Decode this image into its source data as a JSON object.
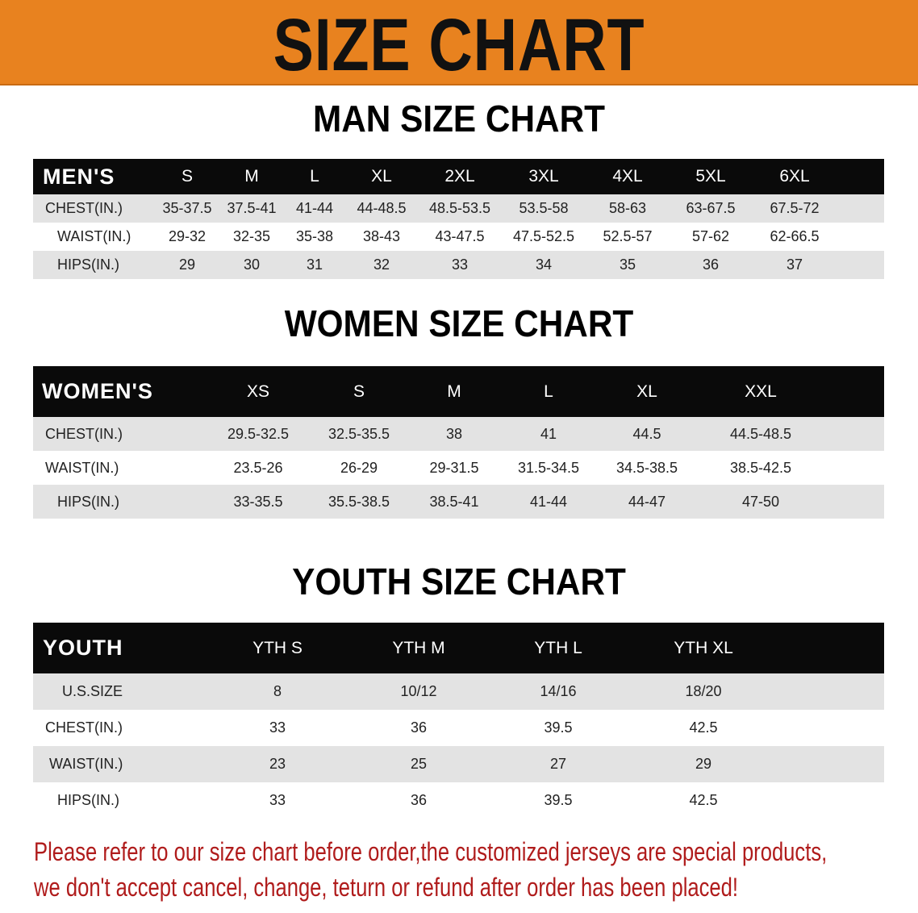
{
  "banner": {
    "title": "SIZE CHART",
    "color": "#E8821F"
  },
  "men": {
    "title": "MAN SIZE CHART",
    "header": [
      "MEN'S",
      "S",
      "M",
      "L",
      "XL",
      "2XL",
      "3XL",
      "4XL",
      "5XL",
      "6XL"
    ],
    "rows": [
      [
        "CHEST(IN.)",
        "35-37.5",
        "37.5-41",
        "41-44",
        "44-48.5",
        "48.5-53.5",
        "53.5-58",
        "58-63",
        "63-67.5",
        "67.5-72"
      ],
      [
        "WAIST(IN.)",
        "29-32",
        "32-35",
        "35-38",
        "38-43",
        "43-47.5",
        "47.5-52.5",
        "52.5-57",
        "57-62",
        "62-66.5"
      ],
      [
        "HIPS(IN.)",
        "29",
        "30",
        "31",
        "32",
        "33",
        "34",
        "35",
        "36",
        "37"
      ]
    ]
  },
  "women": {
    "title": "WOMEN SIZE CHART",
    "header": [
      "WOMEN'S",
      "XS",
      "S",
      "M",
      "L",
      "XL",
      "XXL"
    ],
    "rows": [
      [
        "CHEST(IN.)",
        "29.5-32.5",
        "32.5-35.5",
        "38",
        "41",
        "44.5",
        "44.5-48.5"
      ],
      [
        "WAIST(IN.)",
        "23.5-26",
        "26-29",
        "29-31.5",
        "31.5-34.5",
        "34.5-38.5",
        "38.5-42.5"
      ],
      [
        "HIPS(IN.)",
        "33-35.5",
        "35.5-38.5",
        "38.5-41",
        "41-44",
        "44-47",
        "47-50"
      ]
    ]
  },
  "youth": {
    "title": "YOUTH SIZE CHART",
    "header": [
      "YOUTH",
      "YTH S",
      "YTH M",
      "YTH L",
      "YTH XL"
    ],
    "rows": [
      [
        "U.S.SIZE",
        "8",
        "10/12",
        "14/16",
        "18/20"
      ],
      [
        "CHEST(IN.)",
        "33",
        "36",
        "39.5",
        "42.5"
      ],
      [
        "WAIST(IN.)",
        "23",
        "25",
        "27",
        "29"
      ],
      [
        "HIPS(IN.)",
        "33",
        "36",
        "39.5",
        "42.5"
      ]
    ]
  },
  "footer": {
    "line1": "Please refer to our size chart before order,the customized jerseys are special products,",
    "line2": "we don't accept cancel, change, teturn or refund after order has been placed!",
    "color": "#b01c1c"
  }
}
